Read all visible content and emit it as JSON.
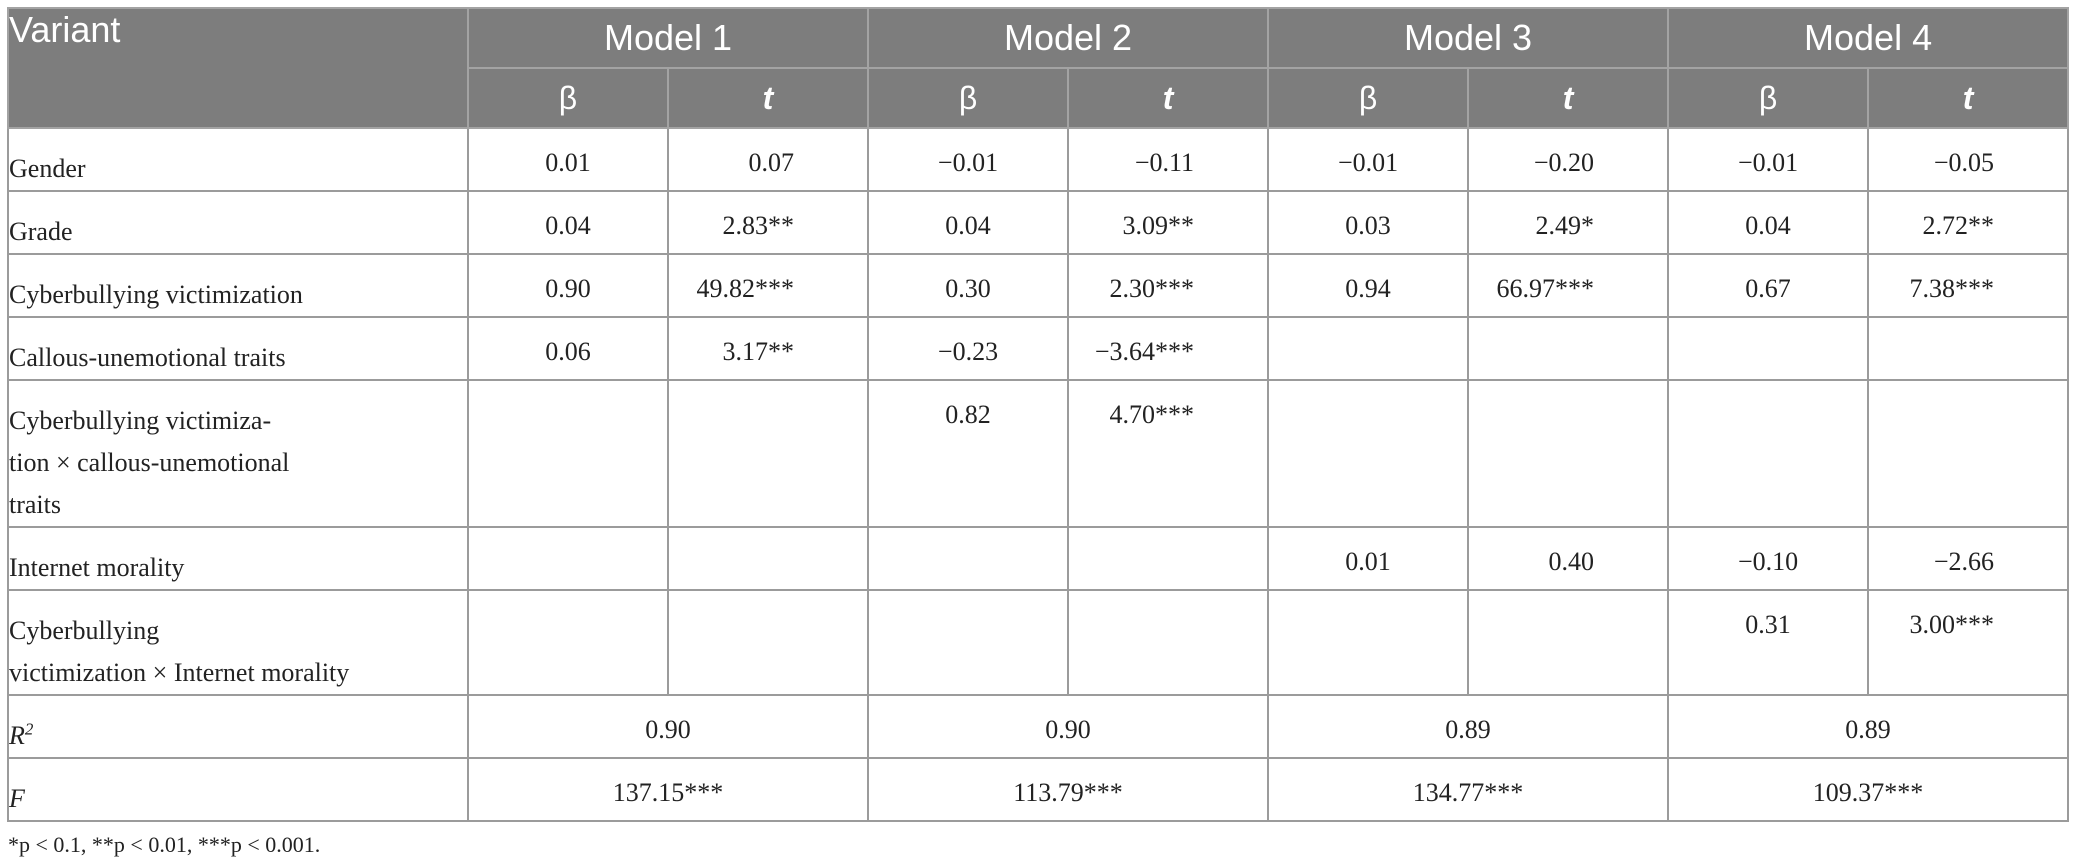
{
  "header": {
    "variant_label": "Variant",
    "models": [
      "Model 1",
      "Model 2",
      "Model 3",
      "Model 4"
    ],
    "beta_label": "β",
    "t_label": "t"
  },
  "rows": [
    {
      "label": "Gender",
      "cells": [
        "0.01",
        "0.07",
        "−0.01",
        "−0.11",
        "−0.01",
        "−0.20",
        "−0.01",
        "−0.05"
      ]
    },
    {
      "label": "Grade",
      "cells": [
        "0.04",
        "2.83**",
        "0.04",
        "3.09**",
        "0.03",
        "2.49*",
        "0.04",
        "2.72**"
      ]
    },
    {
      "label": "Cyberbullying victimization",
      "cells": [
        "0.90",
        "49.82***",
        "0.30",
        "2.30***",
        "0.94",
        "66.97***",
        "0.67",
        "7.38***"
      ]
    },
    {
      "label": "Callous-unemotional traits",
      "cells": [
        "0.06",
        "3.17**",
        "−0.23",
        "−3.64***",
        "",
        "",
        "",
        ""
      ]
    },
    {
      "label_lines": [
        "Cyberbullying victimiza-",
        "tion × callous-unemotional",
        "traits"
      ],
      "cells": [
        "",
        "",
        "0.82",
        "4.70***",
        "",
        "",
        "",
        ""
      ]
    },
    {
      "label": "Internet morality",
      "cells": [
        "",
        "",
        "",
        "",
        "0.01",
        "0.40",
        "−0.10",
        "−2.66"
      ]
    },
    {
      "label_lines": [
        "Cyberbullying",
        "victimization × Internet morality"
      ],
      "cells": [
        "",
        "",
        "",
        "",
        "",
        "",
        "0.31",
        "3.00***"
      ]
    }
  ],
  "stats": {
    "r2": {
      "label": "R",
      "sup": "2",
      "values": [
        "0.90",
        "0.90",
        "0.89",
        "0.89"
      ]
    },
    "f": {
      "label": "F",
      "values": [
        "137.15***",
        "113.79***",
        "134.77***",
        "109.37***"
      ]
    }
  },
  "footnote": "*p < 0.1, **p < 0.01, ***p < 0.001."
}
